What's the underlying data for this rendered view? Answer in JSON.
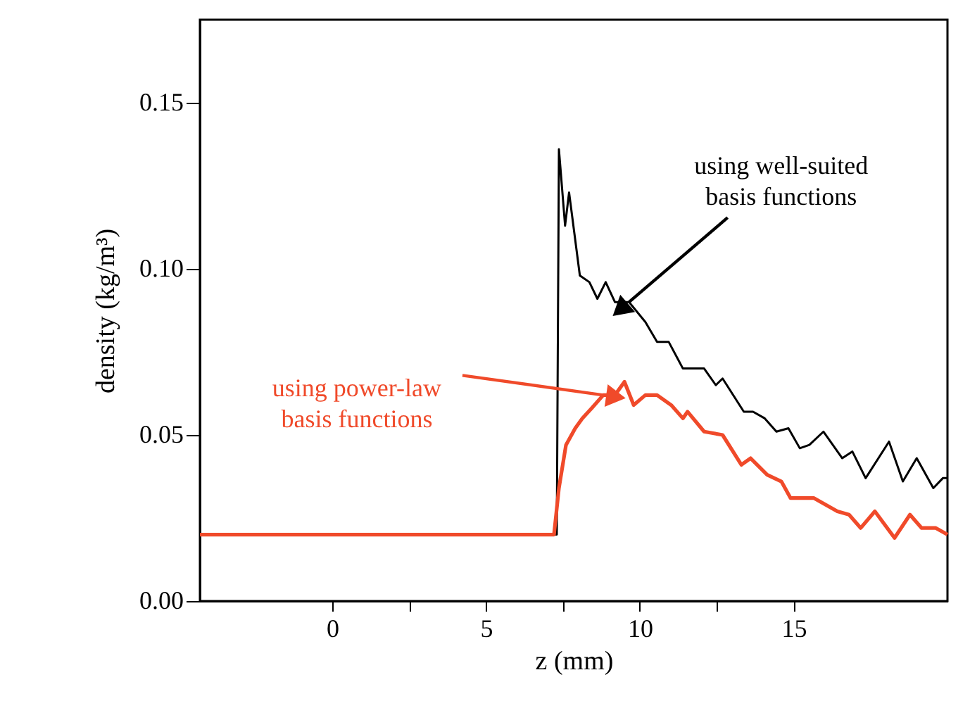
{
  "chart_data": {
    "type": "line",
    "xlabel": "z (mm)",
    "ylabel": "density (kg/m³)",
    "xlim": [
      -4.3,
      20
    ],
    "ylim": [
      0,
      0.175
    ],
    "xticks": [
      0,
      {
        "value": 2.5,
        "label": null
      },
      5,
      {
        "value": 7.5,
        "label": null
      },
      10,
      {
        "value": 12.5,
        "label": null
      },
      15
    ],
    "yticks": [
      {
        "value": 0,
        "label": "0.00"
      },
      0.05,
      {
        "value": 0.1,
        "label": "0.10"
      },
      0.15
    ],
    "marker": "none",
    "line_style": "solid",
    "series": [
      {
        "color": "#000000",
        "x": [
          -4.3,
          7.3,
          7.37,
          7.57,
          7.7,
          8.05,
          8.36,
          8.62,
          8.89,
          9.19,
          9.65,
          10.18,
          10.56,
          10.94,
          11.4,
          12.09,
          12.47,
          12.69,
          13.38,
          13.68,
          14.06,
          14.44,
          14.83,
          15.2,
          15.51,
          15.97,
          16.58,
          16.91,
          17.34,
          18.1,
          18.55,
          19.0,
          19.54,
          19.85,
          20
        ],
        "values": [
          0.02,
          0.02,
          0.136,
          0.113,
          0.123,
          0.098,
          0.096,
          0.091,
          0.096,
          0.09,
          0.09,
          0.084,
          0.078,
          0.078,
          0.07,
          0.07,
          0.065,
          0.067,
          0.057,
          0.057,
          0.055,
          0.051,
          0.052,
          0.046,
          0.047,
          0.051,
          0.043,
          0.045,
          0.037,
          0.048,
          0.036,
          0.043,
          0.034,
          0.037,
          0.037
        ]
      },
      {
        "color": "#f04a2a",
        "x": [
          -4.3,
          7.21,
          7.37,
          7.6,
          7.9,
          8.13,
          8.43,
          8.81,
          9.19,
          9.5,
          9.8,
          10.18,
          10.56,
          11.02,
          11.4,
          11.55,
          12.09,
          12.69,
          13.3,
          13.6,
          14.14,
          14.6,
          14.9,
          15.66,
          16.42,
          16.8,
          17.18,
          17.64,
          18.28,
          18.78,
          19.16,
          19.62,
          20
        ],
        "values": [
          0.02,
          0.02,
          0.034,
          0.047,
          0.052,
          0.055,
          0.058,
          0.062,
          0.062,
          0.066,
          0.059,
          0.062,
          0.062,
          0.059,
          0.055,
          0.057,
          0.051,
          0.05,
          0.041,
          0.043,
          0.038,
          0.036,
          0.031,
          0.031,
          0.027,
          0.026,
          0.022,
          0.027,
          0.019,
          0.026,
          0.022,
          0.022,
          0.02
        ]
      }
    ],
    "annotations": [
      {
        "text": "using well-suited\nbasis functions",
        "x": 9.65,
        "y": 0.09
      },
      {
        "text": "using power-law\nbasis functions",
        "x": 8.81,
        "y": 0.062
      }
    ]
  }
}
